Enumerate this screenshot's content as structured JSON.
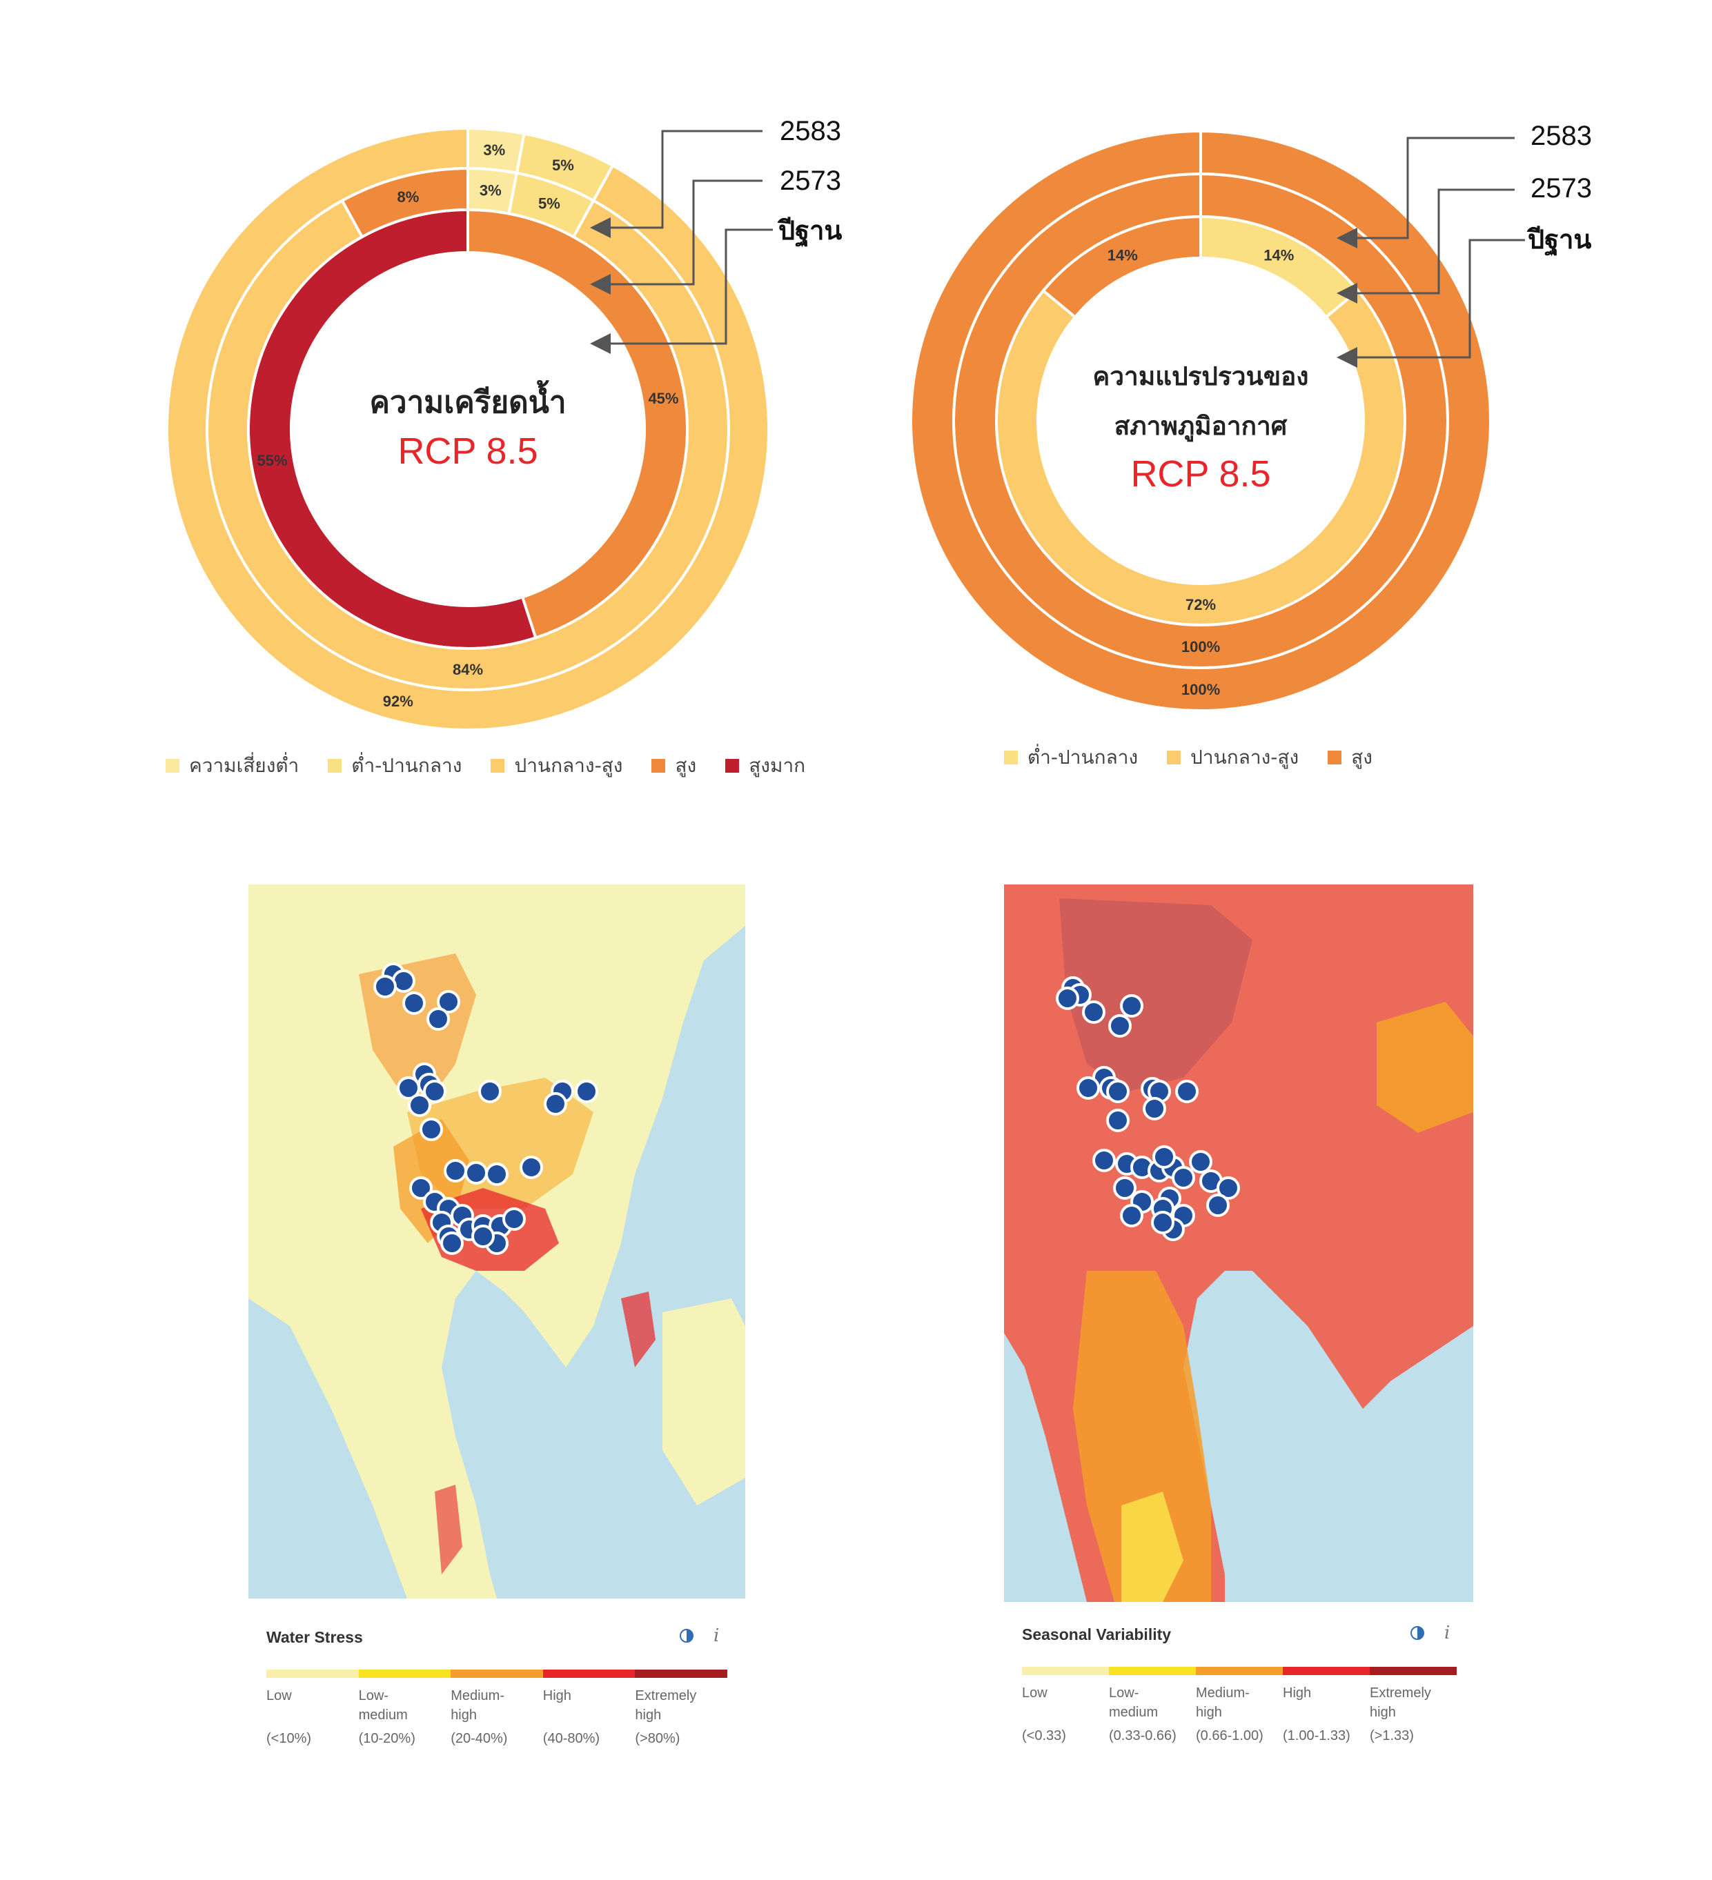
{
  "colors": {
    "low": "#FBE9A0",
    "low_medium": "#FBE083",
    "medium_high": "#FCCB6B",
    "high": "#EF8A3C",
    "extremely_high": "#BE1E2D",
    "rcp_red": "#E8262A",
    "marker": "#1F4E9C"
  },
  "water_stress_donut": {
    "center_title": "ความเครียดน้ำ",
    "center_subtitle": "RCP 8.5",
    "ring_labels": [
      "2583",
      "2573",
      "ปีฐาน"
    ]
  },
  "variability_donut": {
    "center_title_line1": "ความแปรปรวนของ",
    "center_title_line2": "สภาพภูมิอากาศ",
    "center_subtitle": "RCP 8.5",
    "ring_labels": [
      "2583",
      "2573",
      "ปีฐาน"
    ]
  },
  "chart_data": [
    {
      "type": "pie",
      "variant": "donut-multi-ring",
      "title": "ความเครียดน้ำ RCP 8.5",
      "rings": [
        {
          "name": "ปีฐาน",
          "position": "inner",
          "segments": [
            {
              "label": "ต่ำ-ปานกลาง",
              "value": 0
            },
            {
              "label": "สูง",
              "value": 45
            },
            {
              "label": "สูงมาก",
              "value": 55
            }
          ]
        },
        {
          "name": "2573",
          "position": "middle",
          "segments": [
            {
              "label": "ความเสี่ยงต่ำ",
              "value": 3
            },
            {
              "label": "ต่ำ-ปานกลาง",
              "value": 5
            },
            {
              "label": "ปานกลาง-สูง",
              "value": 84
            },
            {
              "label": "สูง",
              "value": 8
            }
          ]
        },
        {
          "name": "2583",
          "position": "outer",
          "segments": [
            {
              "label": "ความเสี่ยงต่ำ",
              "value": 3
            },
            {
              "label": "ต่ำ-ปานกลาง",
              "value": 5
            },
            {
              "label": "ปานกลาง-สูง",
              "value": 92
            }
          ]
        }
      ],
      "legend": [
        "ความเสี่ยงต่ำ",
        "ต่ำ-ปานกลาง",
        "ปานกลาง-สูง",
        "สูง",
        "สูงมาก"
      ],
      "legend_position": "bottom"
    },
    {
      "type": "pie",
      "variant": "donut-multi-ring",
      "title": "ความแปรปรวนของสภาพภูมิอากาศ RCP 8.5",
      "rings": [
        {
          "name": "ปีฐาน",
          "position": "inner",
          "segments": [
            {
              "label": "ต่ำ-ปานกลาง",
              "value": 14
            },
            {
              "label": "ปานกลาง-สูง",
              "value": 72
            },
            {
              "label": "สูง",
              "value": 14
            }
          ]
        },
        {
          "name": "2573",
          "position": "middle",
          "segments": [
            {
              "label": "สูง",
              "value": 100
            }
          ]
        },
        {
          "name": "2583",
          "position": "outer",
          "segments": [
            {
              "label": "สูง",
              "value": 100
            }
          ]
        }
      ],
      "legend": [
        "ต่ำ-ปานกลาง",
        "ปานกลาง-สูง",
        "สูง"
      ],
      "legend_position": "bottom"
    }
  ],
  "legend_water": [
    {
      "label": "ความเสี่ยงต่ำ",
      "color": "#FBE9A0"
    },
    {
      "label": "ต่ำ-ปานกลาง",
      "color": "#FBE083"
    },
    {
      "label": "ปานกลาง-สูง",
      "color": "#FCCB6B"
    },
    {
      "label": "สูง",
      "color": "#EF8A3C"
    },
    {
      "label": "สูงมาก",
      "color": "#BE1E2D"
    }
  ],
  "legend_variability": [
    {
      "label": "ต่ำ-ปานกลาง",
      "color": "#FBE083"
    },
    {
      "label": "ปานกลาง-สูง",
      "color": "#FCCB6B"
    },
    {
      "label": "สูง",
      "color": "#EF8A3C"
    }
  ],
  "water_panel": {
    "title": "Water Stress",
    "info": "i",
    "classes": [
      {
        "name": "Low",
        "range": "(<10%)",
        "color": "#F8F0A8"
      },
      {
        "name": "Low-\nmedium",
        "range": "(10-20%)",
        "color": "#F9E221"
      },
      {
        "name": "Medium-\nhigh",
        "range": "(20-40%)",
        "color": "#F59E2B"
      },
      {
        "name": "High",
        "range": "(40-80%)",
        "color": "#E8262A"
      },
      {
        "name": "Extremely\nhigh",
        "range": "(>80%)",
        "color": "#A51D21"
      }
    ]
  },
  "variability_panel": {
    "title": "Seasonal Variability",
    "info": "i",
    "classes": [
      {
        "name": "Low",
        "range": "(<0.33)",
        "color": "#F8F0A8"
      },
      {
        "name": "Low-\nmedium",
        "range": "(0.33-0.66)",
        "color": "#F9E221"
      },
      {
        "name": "Medium-\nhigh",
        "range": "(0.66-1.00)",
        "color": "#F59E2B"
      },
      {
        "name": "High",
        "range": "(1.00-1.33)",
        "color": "#E8262A"
      },
      {
        "name": "Extremely\nhigh",
        "range": "(>1.33)",
        "color": "#A51D21"
      }
    ]
  }
}
